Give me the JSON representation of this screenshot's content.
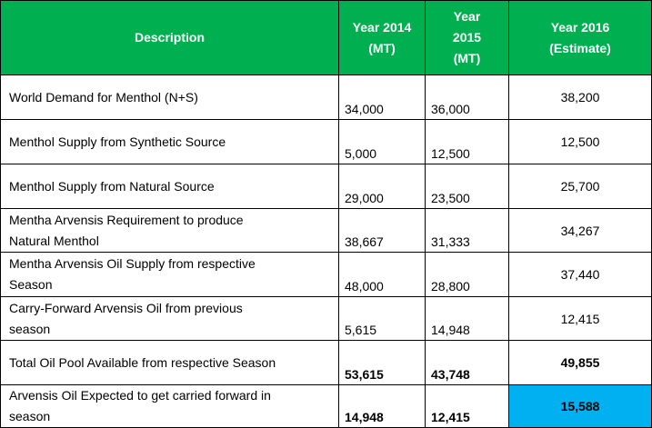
{
  "table": {
    "headers": {
      "description": "Description",
      "year2014": "Year 2014\n(MT)",
      "year2015": "Year\n2015\n(MT)",
      "year2016": "Year 2016\n(Estimate)"
    },
    "rows": [
      {
        "label": "World Demand for Menthol (N+S)",
        "y2014": "34,000",
        "y2015": "36,000",
        "y2016": "38,200"
      },
      {
        "label": "Menthol Supply from Synthetic Source",
        "y2014": "5,000",
        "y2015": "12,500",
        "y2016": "12,500"
      },
      {
        "label": "Menthol Supply from Natural Source",
        "y2014": "29,000",
        "y2015": "23,500",
        "y2016": "25,700"
      },
      {
        "label": "Mentha Arvensis Requirement to produce\nNatural Menthol",
        "y2014": "38,667",
        "y2015": "31,333",
        "y2016": "34,267"
      },
      {
        "label": "Mentha Arvensis Oil Supply from respective\nSeason",
        "y2014": "48,000",
        "y2015": "28,800",
        "y2016": "37,440"
      },
      {
        "label": "Carry-Forward Arvensis Oil from previous\nseason",
        "y2014": "5,615",
        "y2015": "14,948",
        "y2016": "12,415"
      },
      {
        "label": "Total Oil Pool Available from respective Season",
        "y2014": "53,615",
        "y2015": "43,748",
        "y2016": "49,855"
      },
      {
        "label": "Arvensis Oil Expected to get carried forward in\nseason",
        "y2014": "14,948",
        "y2015": "12,415",
        "y2016": "15,588"
      }
    ]
  },
  "colors": {
    "header_bg": "#00b050",
    "highlight_bg": "#00b0f0"
  }
}
